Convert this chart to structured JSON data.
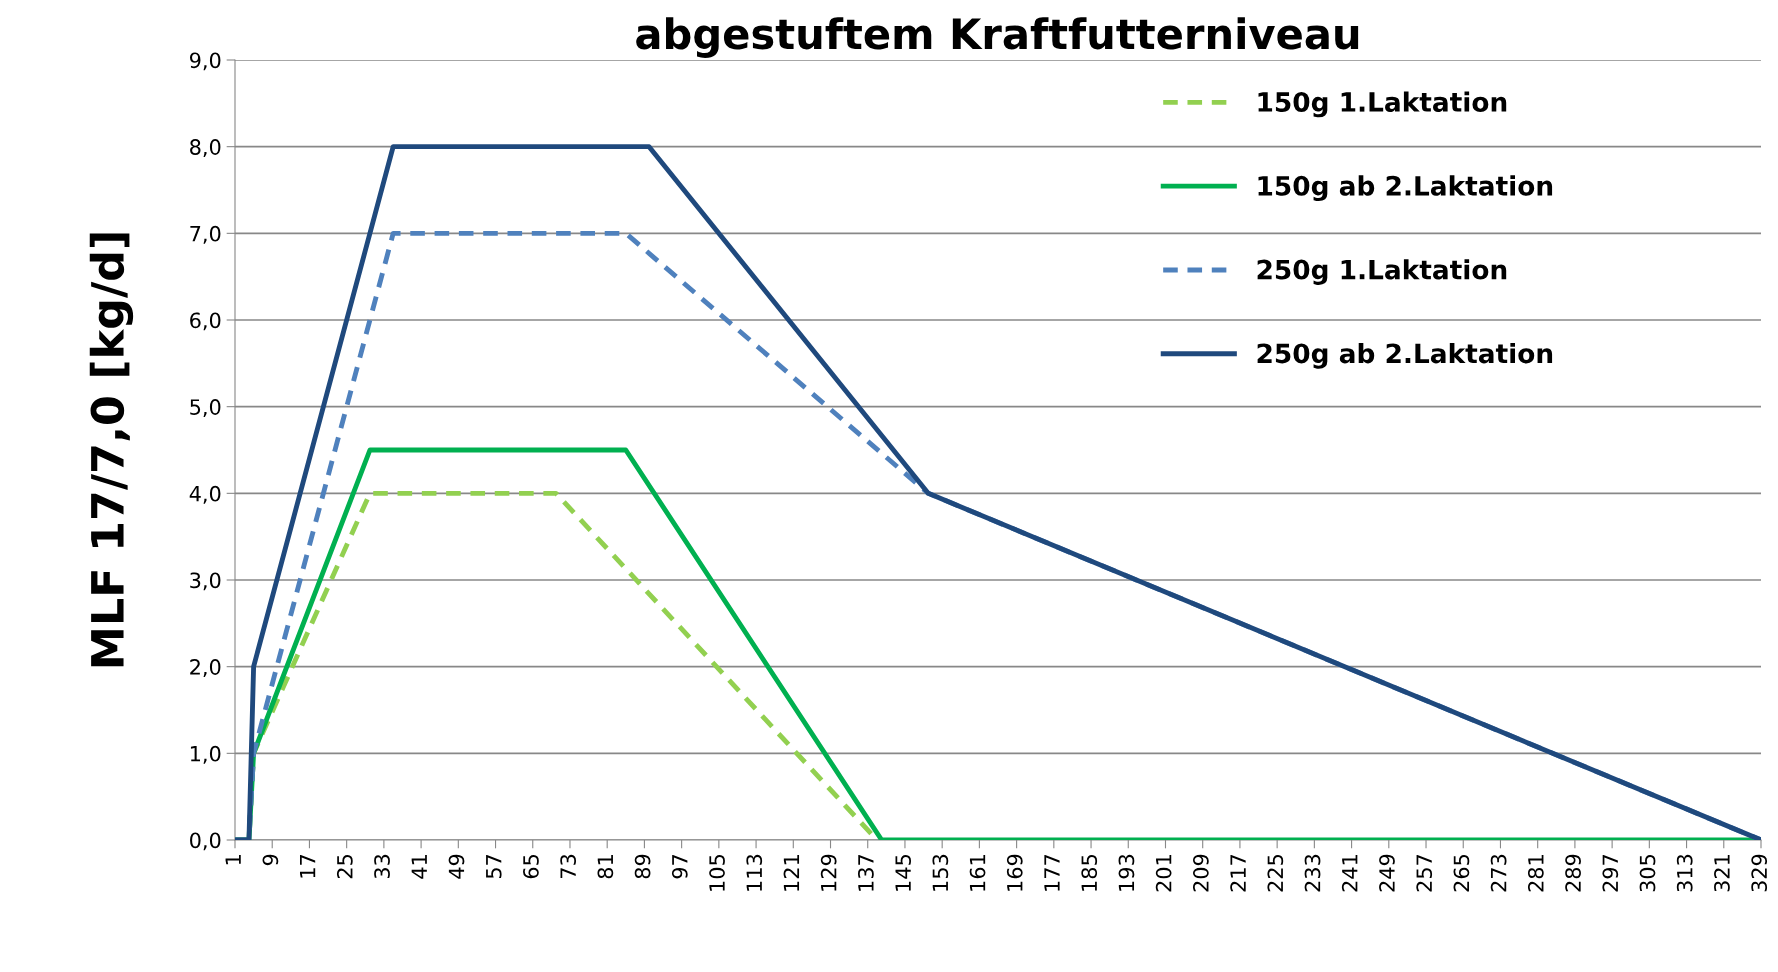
{
  "chart_data": {
    "type": "line",
    "title": "abgestuftem Kraftfutterniveau",
    "ylabel": "MLF 17/7,0 [kg/d]",
    "xlim": [
      1,
      329
    ],
    "xticks": [
      1,
      9,
      17,
      25,
      33,
      41,
      49,
      57,
      65,
      73,
      81,
      89,
      97,
      105,
      113,
      121,
      129,
      137,
      145,
      153,
      161,
      169,
      177,
      185,
      193,
      201,
      209,
      217,
      225,
      233,
      241,
      249,
      257,
      265,
      273,
      281,
      289,
      297,
      305,
      313,
      321,
      329
    ],
    "ylim": [
      0,
      9
    ],
    "yticks": [
      {
        "value": 0,
        "label": "0,0"
      },
      {
        "value": 1,
        "label": "1,0"
      },
      {
        "value": 2,
        "label": "2,0"
      },
      {
        "value": 3,
        "label": "3,0"
      },
      {
        "value": 4,
        "label": "4,0"
      },
      {
        "value": 5,
        "label": "5,0"
      },
      {
        "value": 6,
        "label": "6,0"
      },
      {
        "value": 7,
        "label": "7,0"
      },
      {
        "value": 8,
        "label": "8,0"
      },
      {
        "value": 9,
        "label": "9,0"
      }
    ],
    "grid": "y",
    "legend": "top right",
    "marker": "none",
    "series": [
      {
        "name": "150g 1.Laktation",
        "color": "#92d050",
        "line_style": "dashed",
        "x": [
          1,
          4,
          5,
          30,
          70,
          139
        ],
        "values": [
          0,
          0,
          1.0,
          4.0,
          4.0,
          0
        ]
      },
      {
        "name": "150g ab 2.Laktation",
        "color": "#00b050",
        "line_style": "solid",
        "x": [
          1,
          4,
          5,
          30,
          85,
          140,
          329
        ],
        "values": [
          0,
          0,
          1.0,
          4.5,
          4.5,
          0,
          0
        ]
      },
      {
        "name": "250g 1.Laktation",
        "color": "#4f81bd",
        "line_style": "dashed",
        "x": [
          1,
          4,
          5,
          35,
          85,
          150,
          329
        ],
        "values": [
          0,
          0,
          1.0,
          7.0,
          7.0,
          4.0,
          0
        ]
      },
      {
        "name": "250g ab 2.Laktation",
        "color": "#1f497d",
        "line_style": "solid",
        "x": [
          1,
          4,
          5,
          35,
          90,
          150,
          329
        ],
        "values": [
          0,
          0,
          2.0,
          8.0,
          8.0,
          4.0,
          0
        ]
      }
    ]
  }
}
